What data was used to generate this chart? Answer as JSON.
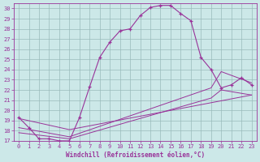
{
  "xlabel": "Windchill (Refroidissement éolien,°C)",
  "bg_color": "#cce8e8",
  "line_color": "#993399",
  "grid_color": "#99bbbb",
  "xlim": [
    -0.5,
    23.5
  ],
  "ylim": [
    17,
    30.5
  ],
  "xticks": [
    0,
    1,
    2,
    3,
    4,
    5,
    6,
    7,
    8,
    9,
    10,
    11,
    12,
    13,
    14,
    15,
    16,
    17,
    18,
    19,
    20,
    21,
    22,
    23
  ],
  "yticks": [
    17,
    18,
    19,
    20,
    21,
    22,
    23,
    24,
    25,
    26,
    27,
    28,
    29,
    30
  ],
  "curve1_x": [
    0,
    1,
    2,
    3,
    4,
    5,
    6,
    7,
    8,
    9,
    10,
    11,
    12,
    13,
    14,
    15,
    16,
    17,
    18,
    19,
    20,
    21,
    22,
    23
  ],
  "curve1_y": [
    19.3,
    18.3,
    17.2,
    17.2,
    17.0,
    17.0,
    19.3,
    22.3,
    25.2,
    26.7,
    27.8,
    28.0,
    29.3,
    30.1,
    30.3,
    30.3,
    29.5,
    28.8,
    25.2,
    24.0,
    22.2,
    22.5,
    23.2,
    22.5
  ],
  "curve2_x": [
    0,
    5,
    23
  ],
  "curve2_y": [
    19.2,
    18.1,
    21.5
  ],
  "curve3_x": [
    0,
    5,
    19,
    20,
    23
  ],
  "curve3_y": [
    18.3,
    17.4,
    22.2,
    23.8,
    22.7
  ],
  "curve4_x": [
    0,
    5,
    19,
    20,
    23
  ],
  "curve4_y": [
    17.8,
    17.2,
    21.2,
    22.0,
    21.5
  ]
}
